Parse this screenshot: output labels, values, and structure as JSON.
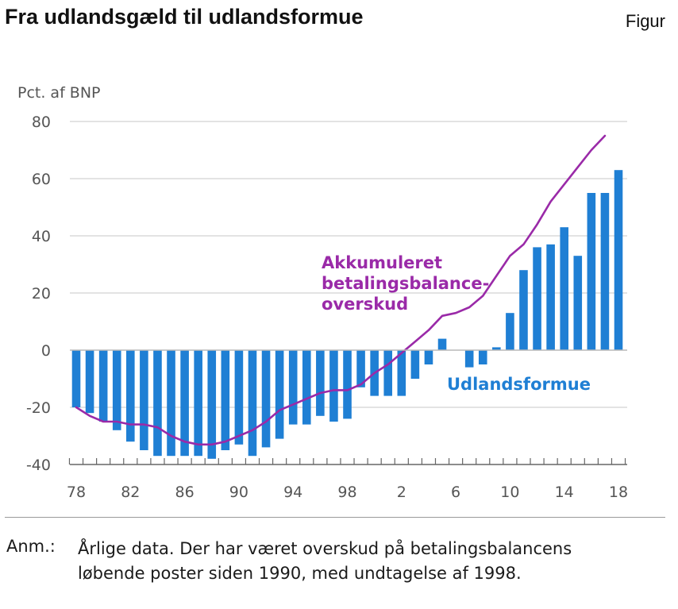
{
  "header": {
    "title": "Fra udlandsgæld til udlandsformue",
    "figure_label": "Figur"
  },
  "chart_data": {
    "type": "bar",
    "title": "Fra udlandsgæld til udlandsformue",
    "ylabel": "Pct. af BNP",
    "xlabel": "",
    "ylim": [
      -40,
      80
    ],
    "yticks": [
      -40,
      -20,
      0,
      20,
      40,
      60,
      80
    ],
    "xtick_labels": [
      "78",
      "82",
      "86",
      "90",
      "94",
      "98",
      "2",
      "6",
      "10",
      "14",
      "18"
    ],
    "x": [
      1978,
      1979,
      1980,
      1981,
      1982,
      1983,
      1984,
      1985,
      1986,
      1987,
      1988,
      1989,
      1990,
      1991,
      1992,
      1993,
      1994,
      1995,
      1996,
      1997,
      1998,
      1999,
      2000,
      2001,
      2002,
      2003,
      2004,
      2005,
      2006,
      2007,
      2008,
      2009,
      2010,
      2011,
      2012,
      2013,
      2014,
      2015,
      2016,
      2017,
      2018
    ],
    "grid": true,
    "series": [
      {
        "name": "Udlandsformue",
        "kind": "bar",
        "color": "#1f7fd4",
        "values": [
          -20,
          -22,
          -25,
          -28,
          -32,
          -35,
          -37,
          -37,
          -37,
          -37,
          -38,
          -35,
          -33,
          -37,
          -34,
          -31,
          -26,
          -26,
          -23,
          -25,
          -24,
          -13,
          -16,
          -16,
          -16,
          -10,
          -5,
          4,
          0,
          -6,
          -5,
          1,
          13,
          28,
          36,
          37,
          43,
          33,
          55,
          55,
          63
        ]
      },
      {
        "name": "Akkumuleret betalingsbalanceoverskud",
        "kind": "line",
        "color": "#9a2aa8",
        "values": [
          -20,
          -23,
          -25,
          -25,
          -26,
          -26,
          -27,
          -30,
          -32,
          -33,
          -33,
          -32,
          -30,
          -28,
          -25,
          -21,
          -19,
          -17,
          -15,
          -14,
          -14,
          -12,
          -8,
          -5,
          -1,
          3,
          7,
          12,
          13,
          15,
          19,
          26,
          33,
          37,
          44,
          52,
          58,
          64,
          70,
          75,
          null
        ]
      }
    ],
    "annotations": [
      {
        "lines": [
          "Akkumuleret",
          "betalingsbalance-",
          "overskud"
        ],
        "color": "#9a2aa8"
      },
      {
        "lines": [
          "Udlandsformue"
        ],
        "color": "#1f7fd4"
      }
    ]
  },
  "footnote": {
    "label": "Anm.:",
    "line1": "Årlige data. Der har været overskud på betalingsbalancens",
    "line2": "løbende poster siden 1990, med undtagelse af 1998."
  }
}
